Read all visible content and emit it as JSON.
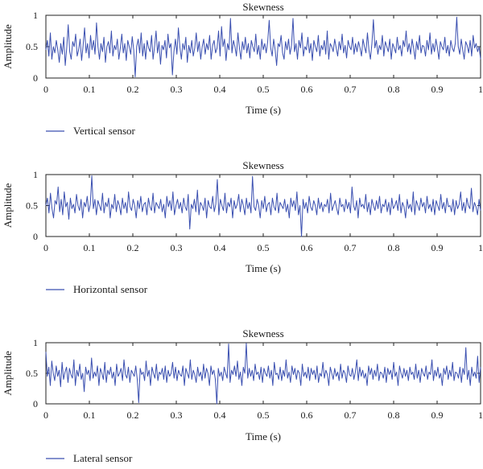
{
  "chart_data": [
    {
      "type": "line",
      "title": "Skewness",
      "xlabel": "Time (s)",
      "ylabel": "Amplitude",
      "xlim": [
        0,
        1
      ],
      "ylim": [
        0,
        1
      ],
      "xticks": [
        "0",
        "0.1",
        "0.2",
        "0.3",
        "0.4",
        "0.5",
        "0.6",
        "0.7",
        "0.8",
        "0.9",
        "1"
      ],
      "yticks": [
        "0",
        "0.5",
        "1"
      ],
      "grid": false,
      "legend_position": "bottom-left",
      "color": "#3a4fb0",
      "series": [
        {
          "name": "Vertical sensor",
          "x_range": [
            0,
            1
          ],
          "values": [
            0.45,
            0.6,
            0.35,
            0.72,
            0.3,
            0.5,
            0.4,
            0.6,
            0.45,
            0.25,
            0.55,
            0.38,
            0.65,
            0.2,
            0.48,
            0.85,
            0.42,
            0.3,
            0.58,
            0.5,
            0.7,
            0.35,
            0.45,
            0.62,
            0.28,
            0.52,
            0.8,
            0.4,
            0.55,
            0.32,
            0.68,
            0.45,
            0.6,
            0.38,
            0.88,
            0.5,
            0.3,
            0.55,
            0.42,
            0.65,
            0.25,
            0.5,
            0.58,
            0.4,
            0.75,
            0.35,
            0.52,
            0.45,
            0.62,
            0.3,
            0.48,
            0.7,
            0.4,
            0.55,
            0.28,
            0.6,
            0.5,
            0.38,
            0.66,
            0.45,
            0.02,
            0.5,
            0.62,
            0.4,
            0.72,
            0.35,
            0.55,
            0.3,
            0.6,
            0.48,
            0.42,
            0.68,
            0.3,
            0.5,
            0.75,
            0.4,
            0.58,
            0.22,
            0.52,
            0.45,
            0.6,
            0.32,
            0.7,
            0.48,
            0.55,
            0.05,
            0.42,
            0.62,
            0.38,
            0.8,
            0.5,
            0.3,
            0.55,
            0.45,
            0.65,
            0.25,
            0.52,
            0.4,
            0.6,
            0.35,
            0.48,
            0.72,
            0.42,
            0.58,
            0.3,
            0.5,
            0.62,
            0.38,
            0.55,
            0.45,
            0.68,
            0.3,
            0.52,
            0.6,
            0.4,
            0.48,
            0.75,
            0.35,
            0.82,
            0.5,
            0.62,
            0.28,
            0.55,
            0.45,
            0.95,
            0.4,
            0.6,
            0.5,
            0.35,
            0.72,
            0.48,
            0.3,
            0.58,
            0.45,
            0.65,
            0.4,
            0.55,
            0.32,
            0.6,
            0.5,
            0.42,
            0.7,
            0.38,
            0.52,
            0.3,
            0.62,
            0.45,
            0.55,
            0.4,
            0.58,
            0.92,
            0.48,
            0.35,
            0.62,
            0.45,
            0.2,
            0.55,
            0.5,
            0.68,
            0.4,
            0.3,
            0.58,
            0.45,
            0.62,
            0.38,
            0.52,
            0.95,
            0.42,
            0.55,
            0.3,
            0.6,
            0.48,
            0.72,
            0.35,
            0.5,
            0.45,
            0.65,
            0.4,
            0.55,
            0.28,
            0.6,
            0.5,
            0.42,
            0.68,
            0.35,
            0.52,
            0.45,
            0.6,
            0.38,
            0.75,
            0.3,
            0.55,
            0.5,
            0.42,
            0.62,
            0.48,
            0.35,
            0.58,
            0.45,
            0.7,
            0.4,
            0.52,
            0.32,
            0.6,
            0.5,
            0.45,
            0.65,
            0.38,
            0.55,
            0.42,
            0.58,
            0.48,
            0.35,
            0.62,
            0.5,
            0.4,
            0.72,
            0.45,
            0.3,
            0.55,
            0.93,
            0.48,
            0.6,
            0.38,
            0.52,
            0.45,
            0.68,
            0.35,
            0.58,
            0.5,
            0.42,
            0.62,
            0.3,
            0.55,
            0.48,
            0.4,
            0.65,
            0.45,
            0.52,
            0.35,
            0.6,
            0.5,
            0.75,
            0.42,
            0.55,
            0.38,
            0.62,
            0.48,
            0.3,
            0.58,
            0.45,
            0.68,
            0.4,
            0.52,
            0.5,
            0.35,
            0.6,
            0.45,
            0.72,
            0.38,
            0.55,
            0.42,
            0.62,
            0.48,
            0.3,
            0.58,
            0.5,
            0.45,
            0.65,
            0.4,
            0.52,
            0.35,
            0.6,
            0.48,
            0.42,
            0.55,
            0.97,
            0.5,
            0.38,
            0.62,
            0.45,
            0.3,
            0.58,
            0.52,
            0.4,
            0.6,
            0.35,
            0.68,
            0.48,
            0.55,
            0.42,
            0.5,
            0.3
          ]
        }
      ]
    },
    {
      "type": "line",
      "title": "Skewness",
      "xlabel": "Time (s)",
      "ylabel": "Amplitude",
      "xlim": [
        0,
        1
      ],
      "ylim": [
        0,
        1
      ],
      "xticks": [
        "0",
        "0.1",
        "0.2",
        "0.3",
        "0.4",
        "0.5",
        "0.6",
        "0.7",
        "0.8",
        "0.9",
        "1"
      ],
      "yticks": [
        "0",
        "0.5",
        "1"
      ],
      "grid": false,
      "legend_position": "bottom-left",
      "color": "#3a4fb0",
      "series": [
        {
          "name": "Horizontal sensor",
          "x_range": [
            0,
            1
          ],
          "values": [
            0.5,
            0.62,
            0.38,
            0.7,
            0.45,
            0.3,
            0.58,
            0.52,
            0.8,
            0.4,
            0.6,
            0.35,
            0.72,
            0.48,
            0.55,
            0.28,
            0.62,
            0.45,
            0.52,
            0.38,
            0.68,
            0.5,
            0.42,
            0.6,
            0.3,
            0.55,
            0.48,
            0.65,
            0.4,
            0.52,
            0.98,
            0.45,
            0.6,
            0.35,
            0.58,
            0.5,
            0.42,
            0.7,
            0.38,
            0.55,
            0.48,
            0.62,
            0.3,
            0.52,
            0.45,
            0.68,
            0.4,
            0.58,
            0.5,
            0.35,
            0.62,
            0.45,
            0.55,
            0.38,
            0.72,
            0.48,
            0.42,
            0.6,
            0.5,
            0.3,
            0.58,
            0.45,
            0.65,
            0.4,
            0.52,
            0.55,
            0.35,
            0.62,
            0.48,
            0.42,
            0.7,
            0.38,
            0.55,
            0.5,
            0.45,
            0.6,
            0.4,
            0.52,
            0.3,
            0.65,
            0.48,
            0.58,
            0.42,
            0.72,
            0.35,
            0.5,
            0.6,
            0.45,
            0.55,
            0.38,
            0.62,
            0.48,
            0.42,
            0.68,
            0.12,
            0.52,
            0.45,
            0.6,
            0.4,
            0.75,
            0.35,
            0.55,
            0.5,
            0.42,
            0.62,
            0.3,
            0.58,
            0.48,
            0.45,
            0.65,
            0.4,
            0.52,
            0.92,
            0.35,
            0.6,
            0.5,
            0.42,
            0.7,
            0.38,
            0.55,
            0.48,
            0.62,
            0.3,
            0.58,
            0.45,
            0.52,
            0.68,
            0.4,
            0.6,
            0.5,
            0.35,
            0.62,
            0.45,
            0.55,
            0.38,
            0.97,
            0.48,
            0.42,
            0.6,
            0.5,
            0.3,
            0.58,
            0.45,
            0.65,
            0.4,
            0.52,
            0.55,
            0.35,
            0.62,
            0.48,
            0.42,
            0.7,
            0.38,
            0.55,
            0.5,
            0.45,
            0.6,
            0.4,
            0.52,
            0.3,
            0.62,
            0.48,
            0.58,
            0.42,
            0.72,
            0.35,
            0.5,
            0.0,
            0.6,
            0.45,
            0.55,
            0.38,
            0.65,
            0.48,
            0.42,
            0.58,
            0.5,
            0.35,
            0.62,
            0.45,
            0.55,
            0.4,
            0.52,
            0.48,
            0.6,
            0.38,
            0.7,
            0.42,
            0.5,
            0.58,
            0.45,
            0.35,
            0.62,
            0.48,
            0.52,
            0.4,
            0.6,
            0.45,
            0.55,
            0.38,
            0.8,
            0.5,
            0.42,
            0.58,
            0.3,
            0.62,
            0.48,
            0.52,
            0.45,
            0.68,
            0.4,
            0.55,
            0.35,
            0.6,
            0.5,
            0.42,
            0.58,
            0.45,
            0.65,
            0.38,
            0.52,
            0.48,
            0.6,
            0.4,
            0.55,
            0.35,
            0.62,
            0.45,
            0.5,
            0.58,
            0.42,
            0.68,
            0.38,
            0.55,
            0.48,
            0.3,
            0.6,
            0.45,
            0.52,
            0.4,
            0.72,
            0.35,
            0.58,
            0.5,
            0.42,
            0.62,
            0.48,
            0.55,
            0.38,
            0.65,
            0.45,
            0.52,
            0.4,
            0.6,
            0.35,
            0.58,
            0.5,
            0.42,
            0.68,
            0.45,
            0.55,
            0.38,
            0.62,
            0.48,
            0.5,
            0.4,
            0.6,
            0.35,
            0.58,
            0.45,
            0.52,
            0.72,
            0.42,
            0.55,
            0.38,
            0.62,
            0.5,
            0.45,
            0.78,
            0.4,
            0.55,
            0.48,
            0.35,
            0.6,
            0.42
          ]
        }
      ]
    },
    {
      "type": "line",
      "title": "Skewness",
      "xlabel": "Time (s)",
      "ylabel": "Amplitude",
      "xlim": [
        0,
        1
      ],
      "ylim": [
        0,
        1
      ],
      "xticks": [
        "0",
        "0.1",
        "0.2",
        "0.3",
        "0.4",
        "0.5",
        "0.6",
        "0.7",
        "0.8",
        "0.9",
        "1"
      ],
      "yticks": [
        "0",
        "0.5",
        "1"
      ],
      "grid": false,
      "legend_position": "bottom-left",
      "color": "#3a4fb0",
      "series": [
        {
          "name": "Lateral sensor",
          "x_range": [
            0,
            1
          ],
          "values": [
            0.85,
            0.45,
            0.6,
            0.3,
            0.7,
            0.5,
            0.38,
            0.62,
            0.45,
            0.55,
            0.28,
            0.68,
            0.4,
            0.52,
            0.6,
            0.35,
            0.58,
            0.48,
            0.42,
            0.72,
            0.3,
            0.55,
            0.45,
            0.65,
            0.4,
            0.5,
            0.2,
            0.6,
            0.48,
            0.55,
            0.38,
            0.75,
            0.42,
            0.52,
            0.45,
            0.62,
            0.3,
            0.58,
            0.5,
            0.4,
            0.68,
            0.35,
            0.55,
            0.48,
            0.6,
            0.42,
            0.52,
            0.3,
            0.65,
            0.45,
            0.5,
            0.58,
            0.38,
            0.72,
            0.48,
            0.42,
            0.6,
            0.35,
            0.55,
            0.5,
            0.45,
            0.62,
            0.4,
            0.02,
            0.58,
            0.48,
            0.52,
            0.38,
            0.7,
            0.45,
            0.55,
            0.3,
            0.6,
            0.5,
            0.42,
            0.65,
            0.38,
            0.52,
            0.48,
            0.58,
            0.4,
            0.62,
            0.35,
            0.55,
            0.45,
            0.5,
            0.68,
            0.42,
            0.6,
            0.38,
            0.55,
            0.48,
            0.45,
            0.62,
            0.3,
            0.58,
            0.5,
            0.42,
            0.72,
            0.4,
            0.55,
            0.48,
            0.35,
            0.6,
            0.45,
            0.52,
            0.38,
            0.65,
            0.42,
            0.58,
            0.5,
            0.3,
            0.62,
            0.48,
            0.55,
            0.4,
            0.0,
            0.58,
            0.45,
            0.52,
            0.38,
            0.6,
            0.5,
            0.42,
            0.98,
            0.35,
            0.55,
            0.48,
            0.62,
            0.45,
            0.7,
            0.4,
            0.52,
            0.3,
            0.6,
            0.5,
            0.99,
            0.42,
            0.58,
            0.45,
            0.55,
            0.38,
            0.65,
            0.48,
            0.52,
            0.4,
            0.6,
            0.35,
            0.58,
            0.5,
            0.45,
            0.62,
            0.42,
            0.55,
            0.3,
            0.68,
            0.48,
            0.5,
            0.4,
            0.6,
            0.38,
            0.55,
            0.45,
            0.72,
            0.42,
            0.52,
            0.35,
            0.62,
            0.48,
            0.58,
            0.4,
            0.55,
            0.5,
            0.3,
            0.65,
            0.45,
            0.52,
            0.42,
            0.6,
            0.38,
            0.58,
            0.48,
            0.55,
            0.4,
            0.62,
            0.35,
            0.5,
            0.45,
            0.68,
            0.42,
            0.55,
            0.48,
            0.3,
            0.6,
            0.5,
            0.4,
            0.58,
            0.45,
            0.52,
            0.38,
            0.65,
            0.42,
            0.55,
            0.5,
            0.35,
            0.62,
            0.48,
            0.45,
            0.58,
            0.4,
            0.52,
            0.72,
            0.38,
            0.6,
            0.45,
            0.55,
            0.42,
            0.5,
            0.3,
            0.62,
            0.48,
            0.58,
            0.4,
            0.55,
            0.45,
            0.65,
            0.38,
            0.52,
            0.5,
            0.42,
            0.6,
            0.35,
            0.58,
            0.48,
            0.55,
            0.4,
            0.68,
            0.45,
            0.52,
            0.3,
            0.62,
            0.5,
            0.42,
            0.58,
            0.45,
            0.55,
            0.38,
            0.6,
            0.48,
            0.52,
            0.4,
            0.65,
            0.42,
            0.55,
            0.35,
            0.58,
            0.5,
            0.45,
            0.62,
            0.4,
            0.52,
            0.48,
            0.72,
            0.38,
            0.55,
            0.45,
            0.6,
            0.42,
            0.5,
            0.3,
            0.58,
            0.48,
            0.62,
            0.4,
            0.55,
            0.45,
            0.68,
            0.38,
            0.52,
            0.5,
            0.42,
            0.6,
            0.35,
            0.58,
            0.48,
            0.92,
            0.4,
            0.55,
            0.3,
            0.6,
            0.45,
            0.52,
            0.42,
            0.78,
            0.35,
            0.6
          ]
        }
      ]
    }
  ]
}
